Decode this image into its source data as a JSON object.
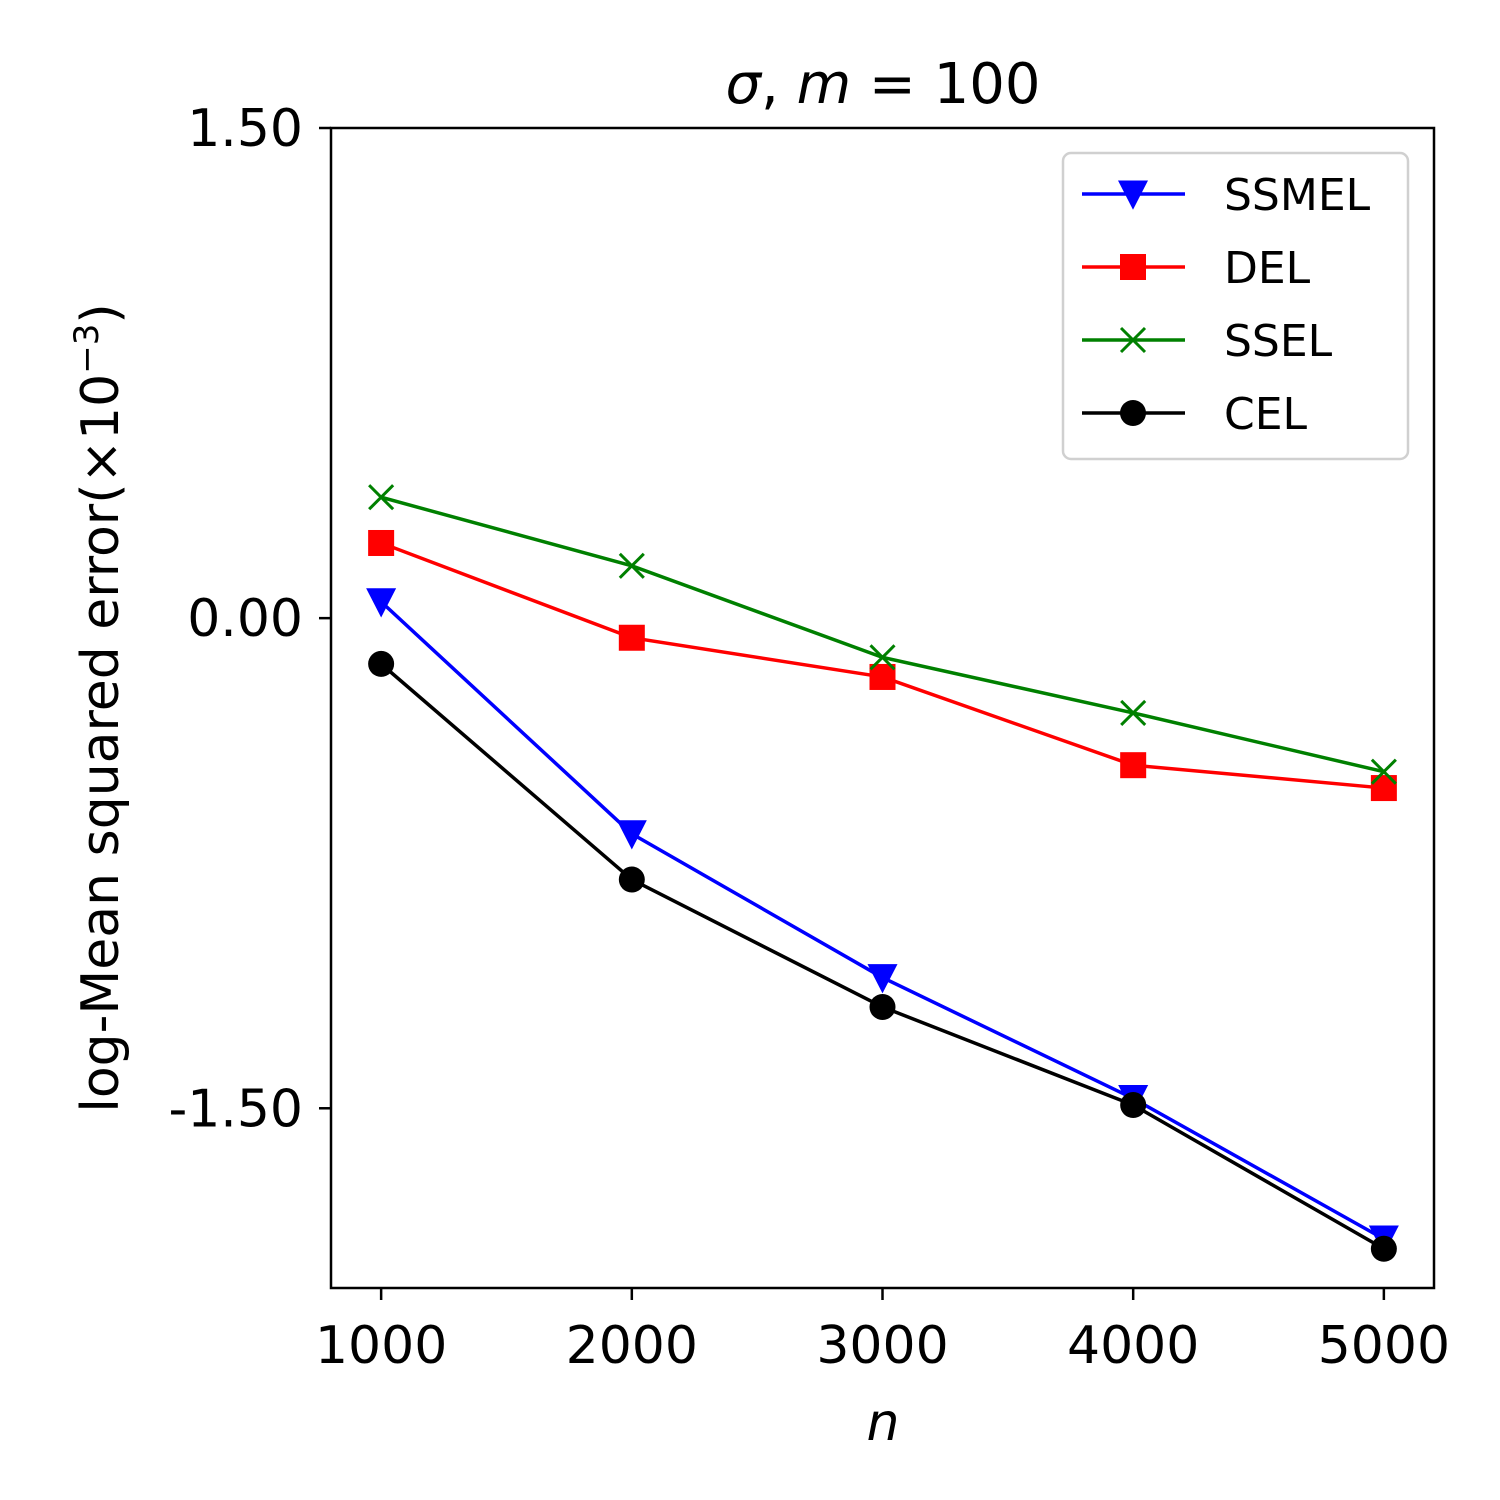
{
  "chart_data": {
    "type": "line",
    "title_symbol": "σ",
    "title_sep": ", ",
    "title_var": "m",
    "title_eq": " = ",
    "title_value": "100",
    "xlabel": "n",
    "ylabel_base": "log-Mean squared error(×10",
    "ylabel_exp": "−3",
    "ylabel_close": ")",
    "x": [
      1000,
      2000,
      3000,
      4000,
      5000
    ],
    "xlim": [
      800,
      5200
    ],
    "ylim": [
      -2.05,
      1.5
    ],
    "x_ticks": [
      1000,
      2000,
      3000,
      4000,
      5000
    ],
    "x_tick_labels": [
      "1000",
      "2000",
      "3000",
      "4000",
      "5000"
    ],
    "y_ticks": [
      1.5,
      0.0,
      -1.5
    ],
    "y_tick_labels": [
      "1.50",
      "0.00",
      "-1.50"
    ],
    "grid": false,
    "legend_position": "top-right",
    "series": [
      {
        "name": "SSMEL",
        "color": "#0000ff",
        "marker": "triangle-down",
        "values": [
          0.05,
          -0.66,
          -1.1,
          -1.47,
          -1.9
        ]
      },
      {
        "name": "DEL",
        "color": "#ff0000",
        "marker": "square",
        "values": [
          0.23,
          -0.06,
          -0.18,
          -0.45,
          -0.52
        ]
      },
      {
        "name": "SSEL",
        "color": "#008000",
        "marker": "x",
        "values": [
          0.37,
          0.16,
          -0.12,
          -0.29,
          -0.47
        ]
      },
      {
        "name": "CEL",
        "color": "#000000",
        "marker": "circle",
        "values": [
          -0.14,
          -0.8,
          -1.19,
          -1.49,
          -1.93
        ]
      }
    ]
  }
}
